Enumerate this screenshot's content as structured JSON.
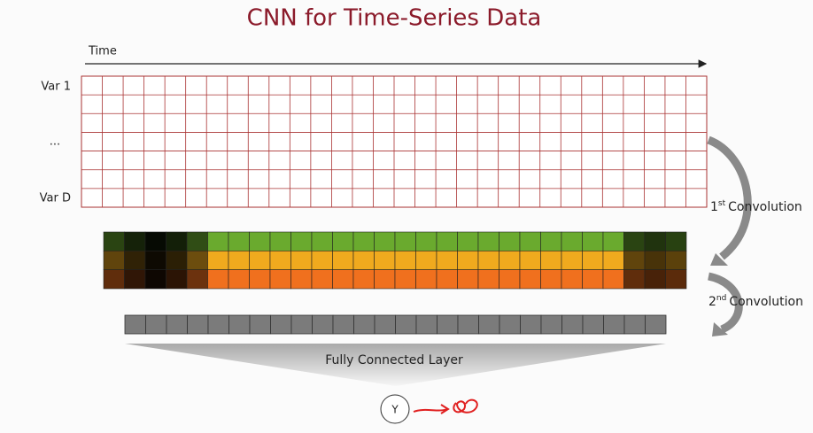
{
  "header": {
    "title": "CNN for Time-Series Data"
  },
  "input": {
    "axis_label": "Time",
    "rows": [
      "Var 1",
      "...",
      "Var D"
    ]
  },
  "convolutions": [
    {
      "ordinal": "1",
      "suffix": "st",
      "text": "Convolution"
    },
    {
      "ordinal": "2",
      "suffix": "nd",
      "text": "Convolution"
    }
  ],
  "dense": {
    "label": "Fully Connected Layer"
  },
  "output": {
    "label": "Y"
  }
}
